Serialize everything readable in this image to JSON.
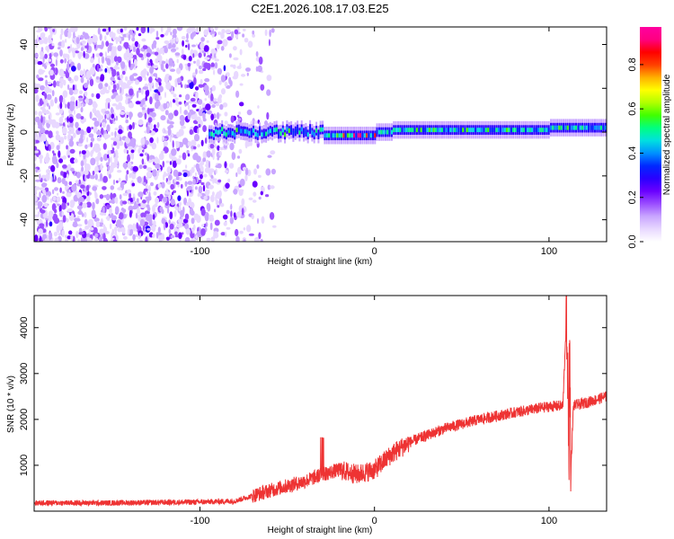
{
  "figure": {
    "title": "C2E1.2026.108.17.03.E25"
  },
  "chart_data": [
    {
      "type": "heatmap",
      "title": "",
      "xlabel": "Height of straight line (km)",
      "ylabel": "Frequency (Hz)",
      "xlim": [
        -195,
        133
      ],
      "ylim": [
        -50,
        48
      ],
      "xticks": [
        -100,
        0,
        100
      ],
      "xtick_labels": [
        "-100",
        "0",
        "100"
      ],
      "yticks": [
        -40,
        -20,
        0,
        20,
        40
      ],
      "ytick_labels": [
        "-40",
        "-20",
        "0",
        "20",
        "40"
      ],
      "colorbar": {
        "label": "Normalized spectral amplitude",
        "range": [
          0,
          0.97
        ],
        "ticks": [
          0,
          0.2,
          0.4,
          0.6,
          0.8
        ],
        "tick_labels": [
          "0.0",
          "0.2",
          "0.4",
          "0.6",
          "0.8"
        ],
        "colormap": [
          "#ffffff",
          "#e8d8ff",
          "#c9a6ff",
          "#9a4dff",
          "#6a00ff",
          "#2a00ff",
          "#0028ff",
          "#0090ff",
          "#00e0e0",
          "#00ff80",
          "#40ff00",
          "#b0ff00",
          "#ffff00",
          "#ffb000",
          "#ff4000",
          "#ff0000",
          "#ff0080",
          "#ff00a0"
        ]
      },
      "description_series": [
        {
          "name": "noise region",
          "x_range": [
            -195,
            -75
          ],
          "amplitude": 0.15
        },
        {
          "name": "signal band",
          "x_range": [
            -95,
            133
          ],
          "center_freq": 0,
          "amplitude": 0.45
        }
      ]
    },
    {
      "type": "line",
      "title": "",
      "xlabel": "Height of straight line (km)",
      "ylabel": "SNR (10 * v/v)",
      "xlim": [
        -195,
        133
      ],
      "ylim": [
        0,
        4700
      ],
      "xticks": [
        -100,
        0,
        100
      ],
      "xtick_labels": [
        "-100",
        "0",
        "100"
      ],
      "yticks": [
        1000,
        2000,
        3000,
        4000
      ],
      "ytick_labels": [
        "1000",
        "2000",
        "3000",
        "4000"
      ],
      "series": [
        {
          "name": "SNR",
          "color": "#ee3333",
          "x": [
            -195,
            -150,
            -100,
            -80,
            -60,
            -40,
            -30,
            -20,
            -10,
            0,
            10,
            20,
            40,
            60,
            80,
            100,
            108,
            110,
            112,
            114,
            120,
            133
          ],
          "y": [
            180,
            180,
            200,
            220,
            450,
            650,
            800,
            900,
            800,
            900,
            1250,
            1500,
            1800,
            2000,
            2150,
            2280,
            2300,
            4300,
            300,
            2300,
            2350,
            2500
          ]
        }
      ]
    }
  ]
}
